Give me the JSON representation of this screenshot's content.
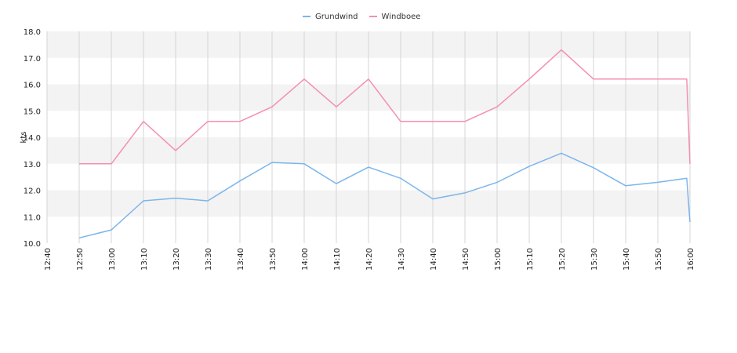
{
  "chart_data": {
    "type": "line",
    "title": "",
    "xlabel": "",
    "ylabel": "kts",
    "ylim": [
      10.0,
      18.0
    ],
    "yticks": [
      "10.0",
      "11.0",
      "12.0",
      "13.0",
      "14.0",
      "15.0",
      "16.0",
      "17.0",
      "18.0"
    ],
    "xticks": [
      "12:40",
      "12:50",
      "13:00",
      "13:10",
      "13:20",
      "13:30",
      "13:40",
      "13:50",
      "14:00",
      "14:10",
      "14:20",
      "14:30",
      "14:40",
      "14:50",
      "15:00",
      "15:10",
      "15:20",
      "15:30",
      "15:40",
      "15:50",
      "16:00"
    ],
    "grid": true,
    "legend_position": "top-center",
    "series": [
      {
        "name": "Grundwind",
        "color": "#7cb5ec",
        "x": [
          "12:50",
          "13:00",
          "13:10",
          "13:20",
          "13:30",
          "13:40",
          "13:50",
          "14:00",
          "14:10",
          "14:20",
          "14:30",
          "14:40",
          "14:50",
          "15:00",
          "15:10",
          "15:20",
          "15:30",
          "15:40",
          "15:50",
          "15:59",
          "16:00"
        ],
        "values": [
          10.2,
          10.5,
          11.6,
          11.7,
          11.6,
          12.35,
          13.05,
          13.0,
          12.25,
          12.87,
          12.45,
          11.67,
          11.9,
          12.3,
          12.9,
          13.4,
          12.85,
          12.17,
          12.3,
          12.45,
          10.8
        ]
      },
      {
        "name": "Windboee",
        "color": "#f48fb1",
        "x": [
          "12:50",
          "13:00",
          "13:10",
          "13:20",
          "13:30",
          "13:40",
          "13:50",
          "14:00",
          "14:10",
          "14:20",
          "14:30",
          "14:40",
          "14:50",
          "15:00",
          "15:10",
          "15:20",
          "15:30",
          "15:40",
          "15:50",
          "15:59",
          "16:00"
        ],
        "values": [
          13.0,
          13.0,
          14.6,
          13.5,
          14.6,
          14.6,
          15.15,
          16.2,
          15.15,
          16.2,
          14.6,
          14.6,
          14.6,
          15.15,
          16.2,
          17.3,
          16.2,
          16.2,
          16.2,
          16.2,
          13.0
        ]
      }
    ]
  }
}
